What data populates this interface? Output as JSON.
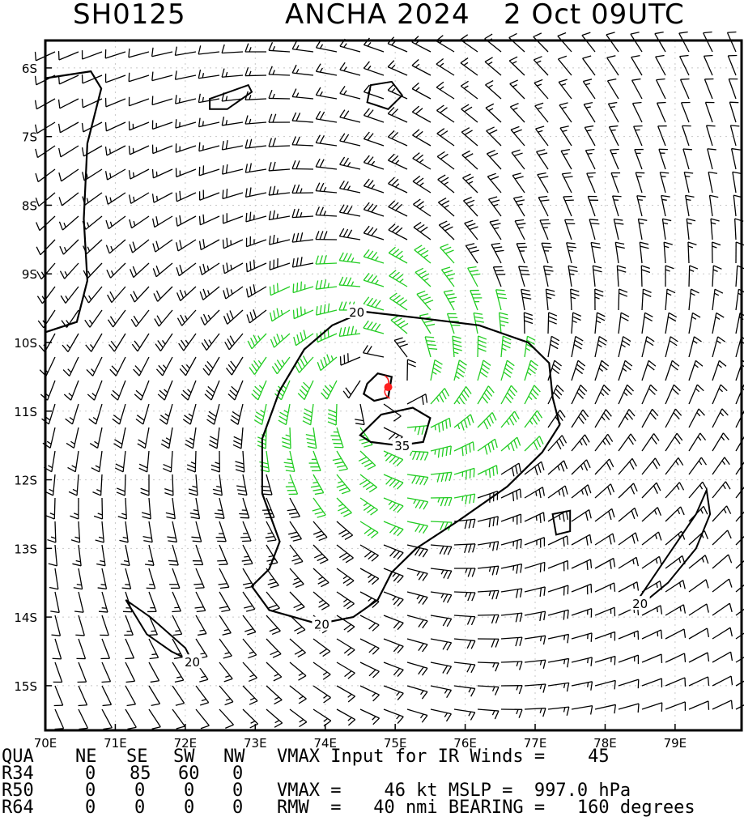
{
  "title": {
    "storm_id": "SH0125",
    "storm_name_year": "ANCHA 2024",
    "datetime": "2 Oct 09UTC"
  },
  "map": {
    "lon_labels": [
      "70E",
      "71E",
      "72E",
      "73E",
      "74E",
      "75E",
      "76E",
      "77E",
      "78E",
      "79E"
    ],
    "lat_labels": [
      "6S",
      "7S",
      "8S",
      "9S",
      "10S",
      "11S",
      "12S",
      "13S",
      "14S",
      "15S"
    ],
    "lon_range": [
      70,
      79.95
    ],
    "lat_range": [
      -5.6,
      -15.65
    ],
    "storm_center": {
      "lon": 74.9,
      "lat": -10.65
    },
    "contour_labels": [
      {
        "text": "20",
        "lon": 74.45,
        "lat": -9.55
      },
      {
        "text": "35",
        "lon": 75.1,
        "lat": -11.5
      },
      {
        "text": "20",
        "lon": 73.95,
        "lat": -14.1
      },
      {
        "text": "20",
        "lon": 72.1,
        "lat": -14.65
      },
      {
        "text": "20",
        "lon": 78.5,
        "lat": -13.8
      }
    ],
    "colors": {
      "barb_below_34": "#000000",
      "barb_34_to_49": "#22cc22",
      "barb_50_plus": "#e8a030",
      "center_marker": "#ff2020",
      "contour": "#000000"
    }
  },
  "table": {
    "header": [
      "QUA",
      "NE",
      "SE",
      "SW",
      "NW"
    ],
    "rows": [
      {
        "label": "R34",
        "ne": "0",
        "se": "85",
        "sw": "60",
        "nw": "0"
      },
      {
        "label": "R50",
        "ne": "0",
        "se": "0",
        "sw": "0",
        "nw": "0"
      },
      {
        "label": "R64",
        "ne": "0",
        "se": "0",
        "sw": "0",
        "nw": "0"
      }
    ],
    "line1": "VMAX Input for IR Winds =    45",
    "line2": "VMAX =    46 kt MSLP =  997.0 hPa",
    "line3": "RMW  =   40 nmi BEARING =   160 degrees"
  }
}
